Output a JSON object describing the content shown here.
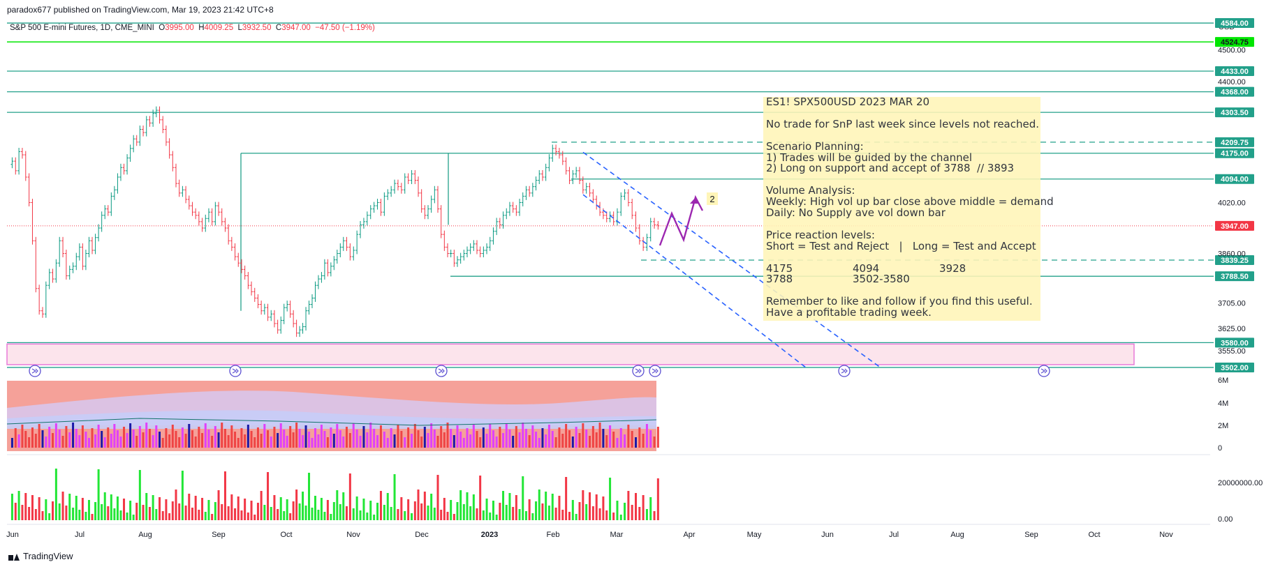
{
  "header": {
    "publisher": "paradox677 published on TradingView.com, Mar 19, 2023 21:42 UTC+8",
    "symbol": "S&P 500 E-mini Futures, 1D, CME_MINI",
    "ohlc": [
      {
        "label": "O",
        "value": "3995.00"
      },
      {
        "label": "H",
        "value": "4009.25"
      },
      {
        "label": "L",
        "value": "3932.50"
      },
      {
        "label": "C",
        "value": "3947.00"
      }
    ],
    "change": "−47.50 (−1.19%)"
  },
  "currency": "USD",
  "footer": {
    "brand": "TradingView"
  },
  "note": {
    "lines": [
      "ES1! SPX500USD 2023 MAR 20",
      "",
      "No trade for SnP last week since levels not reached.",
      "",
      "Scenario Planning:",
      "1) Trades will be guided by the channel",
      "2) Long on support and accept of 3788  // 3893",
      "",
      "Volume Analysis:",
      "Weekly: High vol up bar close above middle = demand",
      "Daily: No Supply ave vol down bar",
      "",
      "Price reaction levels:",
      "Short = Test and Reject   |   Long = Test and Accept",
      "",
      "4175                  4094                  3928",
      "3788                  3502-3580",
      "",
      "Remember to like and follow if you find this useful.",
      "Have a profitable trading week."
    ]
  },
  "colors": {
    "up": "#089981",
    "down": "#f23645",
    "level": "#22a08a",
    "bright_level": "#00e600",
    "channel": "#2962ff",
    "arrow": "#9c27b0",
    "zone": "#fce4ec",
    "zone_border": "#e879d8"
  },
  "chart_data": [
    {
      "type": "candlestick",
      "title": "S&P 500 E-mini Futures, 1D, CME_MINI",
      "x_tick_labels": [
        "Jun",
        "Jul",
        "Aug",
        "Sep",
        "Oct",
        "Nov",
        "Dec",
        "2023",
        "Feb",
        "Mar",
        "Apr",
        "May",
        "Jun",
        "Jul",
        "Aug",
        "Sep",
        "Oct",
        "Nov"
      ],
      "y_tick_labels": [
        4500.0,
        4400.0,
        4020.0,
        3860.0,
        3705.0,
        3625.0,
        3555.0
      ],
      "ylim": [
        3480,
        4560
      ],
      "last_price": 3947.0,
      "months": [
        {
          "label": "Jun",
          "closes": [
            4150,
            4120,
            4180,
            4170,
            4100,
            4020,
            3900,
            3750,
            3680,
            3670,
            3760,
            3800,
            3780,
            3830,
            3900,
            3860,
            3790,
            3810,
            3820
          ]
        },
        {
          "label": "Jul",
          "closes": [
            3850,
            3880,
            3820,
            3860,
            3900,
            3870,
            3910,
            3940,
            3980,
            4000,
            3990,
            4040,
            4060,
            4100,
            4130,
            4120,
            4160,
            4190,
            4220,
            4210
          ]
        },
        {
          "label": "Aug",
          "closes": [
            4250,
            4240,
            4280,
            4270,
            4300,
            4310,
            4280,
            4250,
            4210,
            4170,
            4130,
            4080,
            4050,
            4060,
            4030,
            4010,
            3990,
            3980,
            3960,
            3940,
            3970,
            3990,
            3960
          ]
        },
        {
          "label": "Sep",
          "closes": [
            4010,
            3990,
            3960,
            3940,
            3900,
            3880,
            3850,
            3830,
            3810,
            3790,
            3760,
            3740,
            3720,
            3700,
            3680,
            3690,
            3660,
            3670,
            3640,
            3620
          ]
        },
        {
          "label": "Oct",
          "closes": [
            3650,
            3690,
            3700,
            3670,
            3640,
            3610,
            3620,
            3630,
            3680,
            3700,
            3720,
            3760,
            3780,
            3790,
            3830,
            3800,
            3820,
            3840,
            3860,
            3880,
            3900
          ]
        },
        {
          "label": "Nov",
          "closes": [
            3880,
            3850,
            3870,
            3920,
            3950,
            3960,
            3980,
            4000,
            4010,
            4020,
            3990,
            4040,
            4050,
            4060,
            4080,
            4070,
            4060,
            4100,
            4090,
            4110
          ]
        },
        {
          "label": "Dec",
          "closes": [
            4090,
            4050,
            4000,
            3980,
            4000,
            4030,
            4060,
            4000,
            3920,
            3880,
            3860,
            3860,
            3830,
            3840,
            3850,
            3860,
            3870,
            3880,
            3890,
            3870,
            3860
          ]
        },
        {
          "label": "2023",
          "closes": [
            3870,
            3880,
            3900,
            3930,
            3960,
            3950,
            3980,
            3990,
            4010,
            4000,
            3990,
            4020,
            4040,
            4060,
            4050,
            4070,
            4090,
            4110,
            4100,
            4130
          ]
        },
        {
          "label": "Feb",
          "closes": [
            4160,
            4190,
            4180,
            4170,
            4150,
            4120,
            4090,
            4110,
            4120,
            4090,
            4060,
            4070,
            4050,
            4030,
            4010,
            3990,
            3980,
            3970,
            3980
          ]
        },
        {
          "label": "Mar",
          "closes": [
            3960,
            3990,
            4040,
            4050,
            4020,
            3980,
            3940,
            3900,
            3880,
            3910,
            3960,
            3950,
            3947
          ]
        }
      ],
      "horizontal_levels": [
        {
          "label": "4584.00",
          "value": 4584.0,
          "color": "level"
        },
        {
          "label": "4524.75",
          "value": 4524.75,
          "color": "bright_level"
        },
        {
          "label": "4433.00",
          "value": 4433.0,
          "color": "level"
        },
        {
          "label": "4368.00",
          "value": 4368.0,
          "color": "level"
        },
        {
          "label": "4303.50",
          "value": 4303.5,
          "color": "level"
        },
        {
          "label": "4209.75",
          "value": 4209.75,
          "color": "level",
          "dashed": true
        },
        {
          "label": "4175.00",
          "value": 4175.0,
          "color": "level"
        },
        {
          "label": "4094.00",
          "value": 4094.0,
          "color": "level"
        },
        {
          "label": "3947.00",
          "value": 3947.0,
          "color": "down",
          "dotted": true
        },
        {
          "label": "3839.25",
          "value": 3839.25,
          "color": "level",
          "dashed": true
        },
        {
          "label": "3788.50",
          "value": 3788.5,
          "color": "level"
        },
        {
          "label": "3580.00",
          "value": 3580.0,
          "color": "level"
        },
        {
          "label": "3502.00",
          "value": 3502.0,
          "color": "level"
        }
      ],
      "zone": {
        "from": 3502,
        "to": 3580
      },
      "annotation_label": "2"
    },
    {
      "type": "volume-profile",
      "y_tick_labels": [
        "6M",
        "4M",
        "2M",
        "0"
      ],
      "ylim": [
        0,
        6
      ]
    },
    {
      "type": "bar",
      "y_tick_labels": [
        "20000000.00",
        "0.00"
      ],
      "ylim": [
        0,
        30000000
      ]
    }
  ]
}
